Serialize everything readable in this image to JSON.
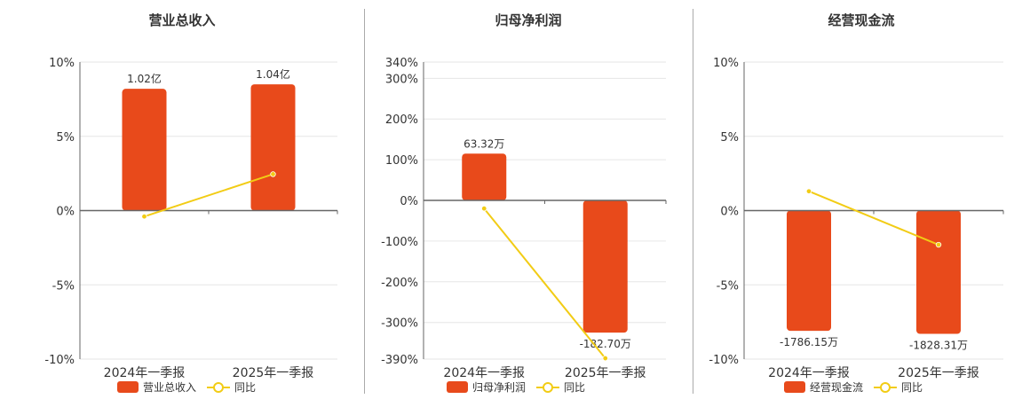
{
  "colors": {
    "bar": "#e84a1b",
    "line": "#f2cc15",
    "axis": "#666666",
    "grid": "#e6e6e6"
  },
  "legend_line_label": "同比",
  "chart_data": [
    {
      "type": "bar",
      "title": "营业总收入",
      "categories": [
        "2024年一季报",
        "2025年一季报"
      ],
      "bar_series": {
        "name": "营业总收入",
        "values": [
          8.2,
          8.5
        ],
        "labels": [
          "1.02亿",
          "1.04亿"
        ]
      },
      "line_series": {
        "name": "同比",
        "values": [
          -0.4,
          2.45
        ]
      },
      "ylim": [
        -10,
        10
      ],
      "yticks": [
        10,
        5,
        0,
        -5,
        -10
      ],
      "ytick_labels": [
        "10%",
        "5%",
        "0%",
        "-5%",
        "-10%"
      ]
    },
    {
      "type": "bar",
      "title": "归母净利润",
      "categories": [
        "2024年一季报",
        "2025年一季报"
      ],
      "bar_series": {
        "name": "归母净利润",
        "values": [
          115,
          -325
        ],
        "labels": [
          "63.32万",
          "-182.70万"
        ]
      },
      "line_series": {
        "name": "同比",
        "values": [
          -20,
          -388
        ]
      },
      "ylim": [
        -390,
        340
      ],
      "yticks": [
        340,
        300,
        200,
        100,
        0,
        -100,
        -200,
        -300,
        -390
      ],
      "ytick_labels": [
        "340%",
        "300%",
        "200%",
        "100%",
        "0%",
        "-100%",
        "-200%",
        "-300%",
        "-390%"
      ]
    },
    {
      "type": "bar",
      "title": "经营现金流",
      "categories": [
        "2024年一季报",
        "2025年一季报"
      ],
      "bar_series": {
        "name": "经营现金流",
        "values": [
          -8.1,
          -8.3
        ],
        "labels": [
          "-1786.15万",
          "-1828.31万"
        ]
      },
      "line_series": {
        "name": "同比",
        "values": [
          1.3,
          -2.3
        ]
      },
      "ylim": [
        -10,
        10
      ],
      "yticks": [
        10,
        5,
        0,
        -5,
        -10
      ],
      "ytick_labels": [
        "10%",
        "5%",
        "0%",
        "-5%",
        "-10%"
      ]
    }
  ]
}
